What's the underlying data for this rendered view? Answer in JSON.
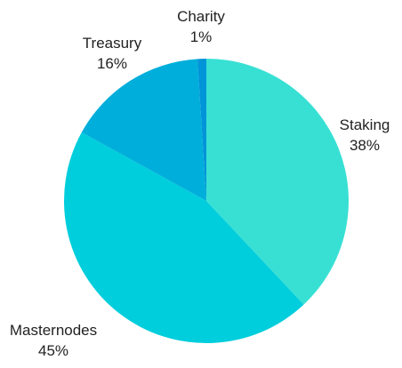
{
  "chart_data": {
    "type": "pie",
    "categories": [
      "Staking",
      "Masternodes",
      "Treasury",
      "Charity"
    ],
    "values": [
      38,
      45,
      16,
      1
    ],
    "value_labels": [
      "38%",
      "45%",
      "16%",
      "1%"
    ],
    "colors": [
      "#38e0d4",
      "#00cedc",
      "#00aedb",
      "#0094d8"
    ],
    "start_direction": "top",
    "direction": "clockwise",
    "legend": "none"
  }
}
